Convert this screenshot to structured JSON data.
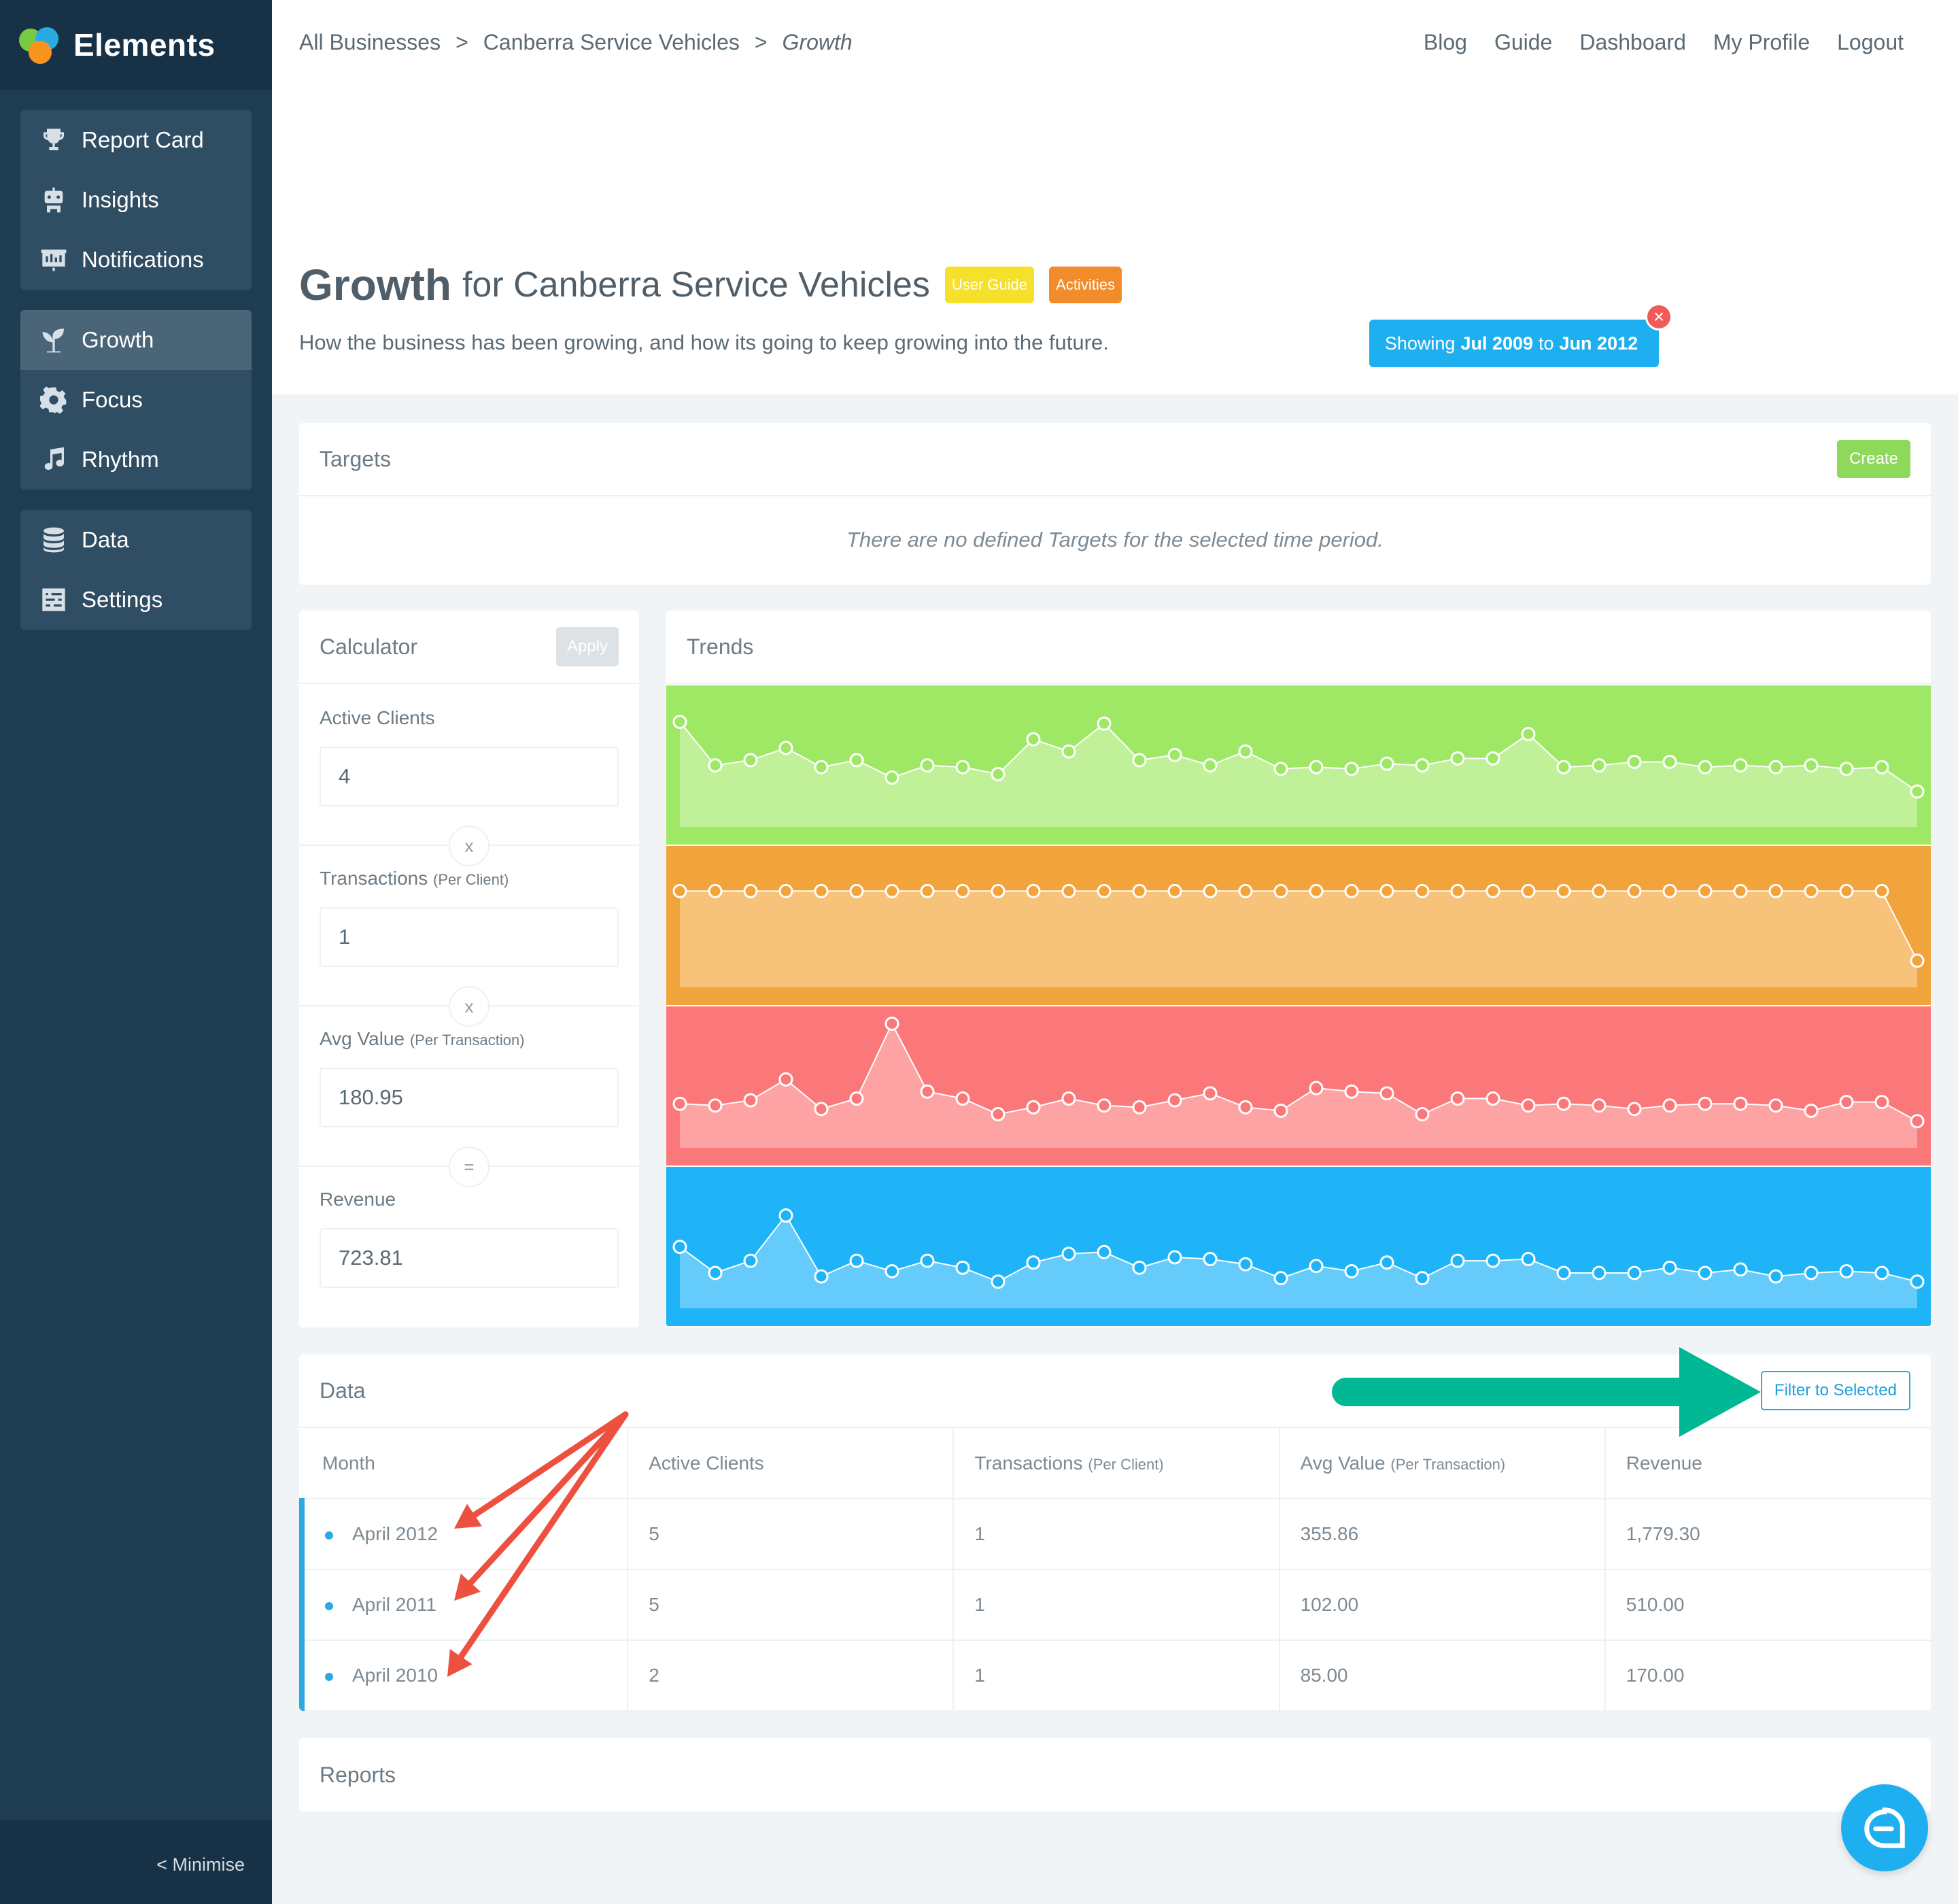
{
  "brand": {
    "name": "Elements"
  },
  "sidebar": {
    "groups": [
      [
        {
          "label": "Report Card",
          "icon": "trophy-icon"
        },
        {
          "label": "Insights",
          "icon": "robot-icon"
        },
        {
          "label": "Notifications",
          "icon": "presentation-icon"
        }
      ],
      [
        {
          "label": "Growth",
          "icon": "sprout-icon",
          "active": true
        },
        {
          "label": "Focus",
          "icon": "gear-icon"
        },
        {
          "label": "Rhythm",
          "icon": "music-note-icon"
        }
      ],
      [
        {
          "label": "Data",
          "icon": "database-icon"
        },
        {
          "label": "Settings",
          "icon": "sliders-icon"
        }
      ]
    ],
    "minimise_label": "< Minimise"
  },
  "breadcrumb": {
    "items": [
      "All Businesses",
      "Canberra Service Vehicles",
      "Growth"
    ],
    "separator": ">"
  },
  "topnav": {
    "items": [
      "Blog",
      "Guide",
      "Dashboard",
      "My Profile",
      "Logout"
    ]
  },
  "page": {
    "title": "Growth",
    "title_suffix": "for Canberra Service Vehicles",
    "badges": {
      "user_guide": "User Guide",
      "activities": "Activities"
    },
    "subtitle": "How the business has been growing, and how its going to keep growing into the future.",
    "date_filter": {
      "prefix": "Showing",
      "from": "Jul 2009",
      "to_word": "to",
      "to": "Jun 2012"
    }
  },
  "targets": {
    "title": "Targets",
    "create_label": "Create",
    "empty_message": "There are no defined Targets for the selected time period."
  },
  "calculator": {
    "title": "Calculator",
    "apply_label": "Apply",
    "fields": [
      {
        "label": "Active Clients",
        "qualifier": "",
        "value": "4"
      },
      {
        "label": "Transactions",
        "qualifier": "(Per Client)",
        "value": "1"
      },
      {
        "label": "Avg Value",
        "qualifier": "(Per Transaction)",
        "value": "180.95"
      },
      {
        "label": "Revenue",
        "qualifier": "",
        "value": "723.81"
      }
    ],
    "operators": [
      "x",
      "x",
      "="
    ]
  },
  "trends": {
    "title": "Trends",
    "colors": {
      "bands": [
        "#9ee866",
        "#f2a43c",
        "#fb787a",
        "#1eb4f7"
      ],
      "fills": [
        "#c0f098",
        "#f7c27a",
        "#fda3a4",
        "#64cbfb"
      ]
    }
  },
  "chart_data": {
    "type": "area",
    "axes_visible": false,
    "points_per_series": 36,
    "series": [
      {
        "values": [
          65,
          40,
          43,
          50,
          39,
          43,
          33,
          40,
          39,
          35,
          55,
          48,
          64,
          43,
          46,
          40,
          48,
          38,
          39,
          38,
          41,
          40,
          44,
          44,
          58,
          39,
          40,
          42,
          42,
          39,
          40,
          39,
          40,
          38,
          39,
          25
        ]
      },
      {
        "values": [
          60,
          60,
          60,
          60,
          60,
          60,
          60,
          60,
          60,
          60,
          60,
          60,
          60,
          60,
          60,
          60,
          60,
          60,
          60,
          60,
          60,
          60,
          60,
          60,
          60,
          60,
          60,
          60,
          60,
          60,
          60,
          60,
          60,
          60,
          60,
          20
        ]
      },
      {
        "values": [
          30,
          29,
          32,
          44,
          27,
          33,
          76,
          37,
          33,
          24,
          28,
          33,
          29,
          28,
          32,
          36,
          28,
          26,
          39,
          37,
          36,
          24,
          33,
          33,
          29,
          30,
          29,
          27,
          29,
          30,
          30,
          29,
          26,
          31,
          31,
          20
        ]
      },
      {
        "values": [
          40,
          25,
          32,
          58,
          23,
          32,
          26,
          32,
          28,
          20,
          31,
          36,
          37,
          28,
          34,
          33,
          30,
          22,
          29,
          26,
          31,
          22,
          32,
          32,
          33,
          25,
          25,
          25,
          28,
          25,
          27,
          23,
          25,
          26,
          25,
          20
        ]
      }
    ]
  },
  "data_table": {
    "title": "Data",
    "filter_label": "Filter to Selected",
    "columns": [
      {
        "label": "Month",
        "qualifier": ""
      },
      {
        "label": "Active Clients",
        "qualifier": ""
      },
      {
        "label": "Transactions",
        "qualifier": "(Per Client)"
      },
      {
        "label": "Avg Value",
        "qualifier": "(Per Transaction)"
      },
      {
        "label": "Revenue",
        "qualifier": ""
      }
    ],
    "rows": [
      [
        "April 2012",
        "5",
        "1",
        "355.86",
        "1,779.30"
      ],
      [
        "April 2011",
        "5",
        "1",
        "102.00",
        "510.00"
      ],
      [
        "April 2010",
        "2",
        "1",
        "85.00",
        "170.00"
      ]
    ]
  },
  "reports": {
    "title": "Reports"
  },
  "annotations": {
    "arrow_colors": {
      "red": "#ee5040",
      "green": "#00b894"
    }
  }
}
